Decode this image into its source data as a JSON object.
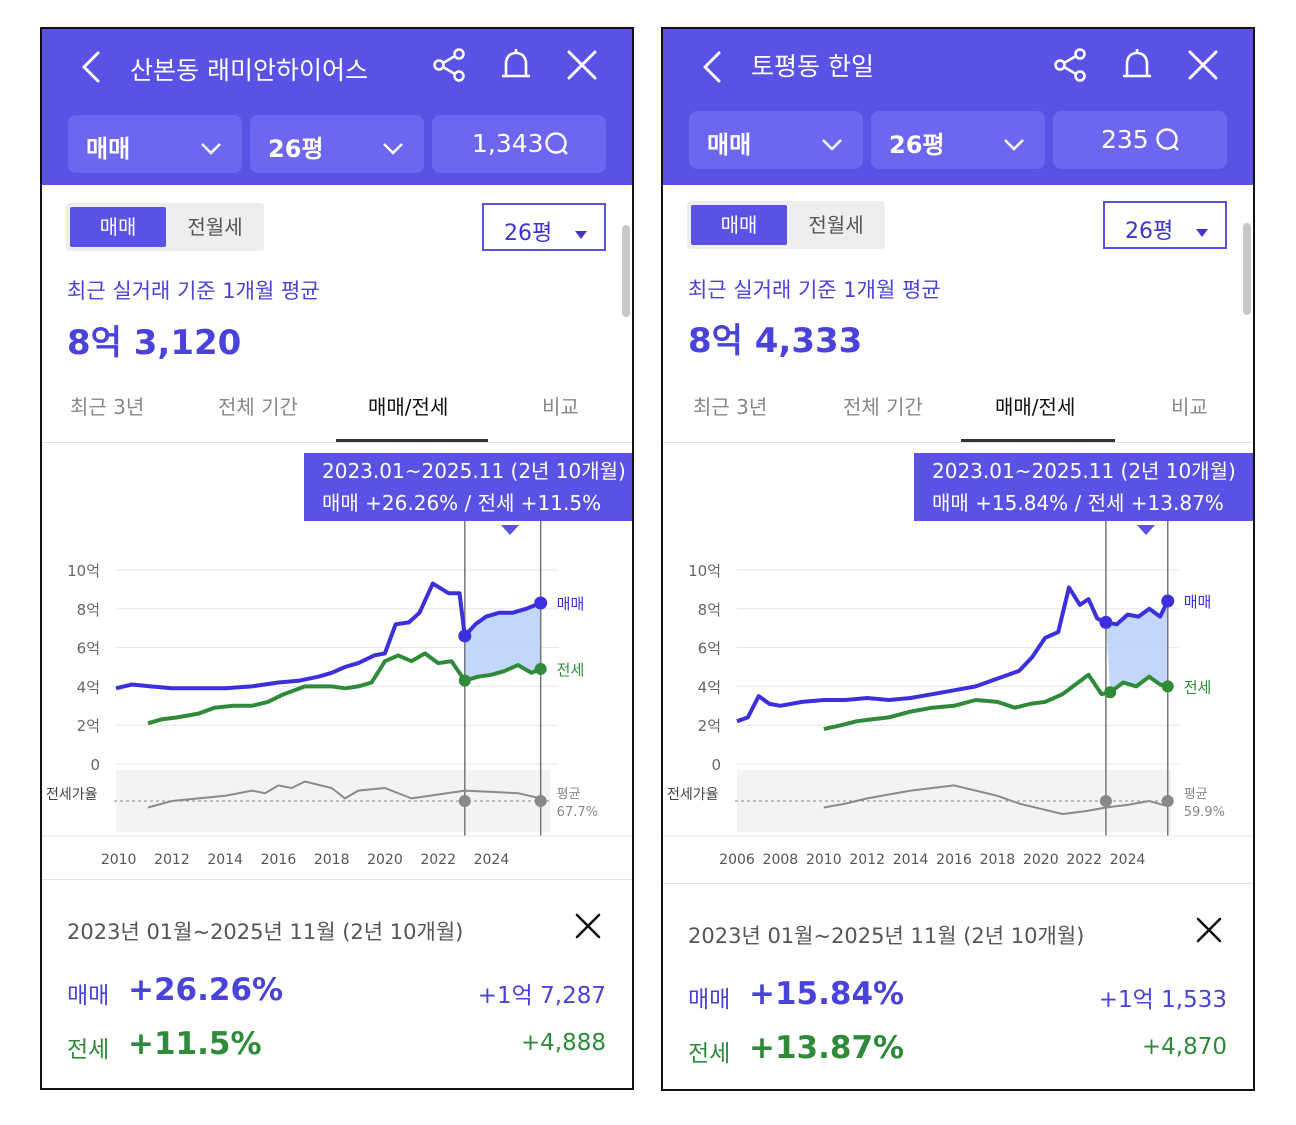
{
  "colors": {
    "header": "#5a52e4",
    "sale": "#3b30dc",
    "lease": "#2f8a3a",
    "ratio": "#8a8a8a",
    "highlight": "#bcd3fb"
  },
  "icons": [
    "back-arrow-icon",
    "share-icon",
    "bell-icon",
    "close-icon",
    "chevron-down-icon",
    "comment-icon",
    "dropdown-triangle-icon"
  ],
  "panels": [
    {
      "header": {
        "title": "산본동 래미안하이어스"
      },
      "selects": {
        "trade": "매매",
        "size": "26평",
        "comments": "1,343"
      },
      "segment": {
        "active": "매매",
        "inactive": "전월세"
      },
      "size_dropdown": "26평",
      "summary": {
        "label": "최근 실거래 기준 1개월 평균",
        "value": "8억 3,120"
      },
      "tabs": [
        "최근 3년",
        "전체 기간",
        "매매/전세",
        "비교"
      ],
      "active_tab": "매매/전세",
      "tooltip": {
        "line1": "2023.01~2025.11 (2년 10개월)",
        "line2": "매매 +26.26%  /  전세 +11.5%"
      },
      "bottom": {
        "period": "2023년 01월~2025년 11월 (2년 10개월)",
        "sale_label": "매매",
        "sale_pct": "+26.26%",
        "sale_amt": "+1억 7,287",
        "lease_label": "전세",
        "lease_pct": "+11.5%",
        "lease_amt": "+4,888"
      },
      "chart_data": {
        "type": "line",
        "y_ticks": [
          "10억",
          "8억",
          "6억",
          "4억",
          "2억",
          "0"
        ],
        "ylim": [
          0,
          10
        ],
        "y_unit": "억",
        "x_ticks": [
          "2010",
          "2012",
          "2014",
          "2016",
          "2018",
          "2020",
          "2022",
          "2024"
        ],
        "xlim": [
          2009.9,
          2026.2
        ],
        "ratio_label": "전세가율",
        "avg_label": "평균",
        "avg_value": "67.7%",
        "highlight_range": [
          2023.0,
          2025.85
        ],
        "series": [
          {
            "name": "매매",
            "x": [
              2009.9,
              2010.5,
              2011.2,
              2012.0,
              2013.0,
              2014.0,
              2015.0,
              2016.0,
              2016.8,
              2017.5,
              2018.0,
              2018.5,
              2019.0,
              2019.6,
              2020.0,
              2020.4,
              2020.9,
              2021.3,
              2021.8,
              2022.4,
              2022.8,
              2023.0,
              2023.4,
              2023.8,
              2024.3,
              2024.8,
              2025.3,
              2025.85
            ],
            "values": [
              3.9,
              4.1,
              4.0,
              3.9,
              3.9,
              3.9,
              4.0,
              4.2,
              4.3,
              4.5,
              4.7,
              5.0,
              5.2,
              5.6,
              5.7,
              7.2,
              7.3,
              7.8,
              9.3,
              8.8,
              8.8,
              6.6,
              7.2,
              7.6,
              7.8,
              7.8,
              8.0,
              8.3
            ]
          },
          {
            "name": "전세",
            "x": [
              2011.1,
              2011.6,
              2012.2,
              2013.0,
              2013.6,
              2014.3,
              2015.0,
              2015.6,
              2016.2,
              2017.0,
              2018.0,
              2018.5,
              2019.0,
              2019.5,
              2020.0,
              2020.5,
              2021.0,
              2021.5,
              2022.0,
              2022.5,
              2023.0,
              2023.5,
              2024.0,
              2024.5,
              2025.0,
              2025.5,
              2025.85
            ],
            "values": [
              2.1,
              2.3,
              2.4,
              2.6,
              2.9,
              3.0,
              3.0,
              3.2,
              3.6,
              4.0,
              4.0,
              3.9,
              4.0,
              4.2,
              5.3,
              5.6,
              5.3,
              5.7,
              5.2,
              5.3,
              4.3,
              4.5,
              4.6,
              4.8,
              5.1,
              4.7,
              4.9
            ]
          },
          {
            "name": "전세가율",
            "x": [
              2011.1,
              2012.0,
              2013.0,
              2014.0,
              2015.0,
              2015.5,
              2016.0,
              2016.5,
              2017.0,
              2018.0,
              2018.5,
              2019.0,
              2020.0,
              2021.0,
              2022.0,
              2023.0,
              2024.0,
              2025.0,
              2025.85
            ],
            "values": [
              55,
              60,
              62,
              64,
              68,
              66,
              72,
              70,
              75,
              70,
              62,
              68,
              70,
              62,
              65,
              68,
              67,
              66,
              62
            ]
          }
        ]
      }
    },
    {
      "header": {
        "title": "토평동 한일"
      },
      "selects": {
        "trade": "매매",
        "size": "26평",
        "comments": "235"
      },
      "segment": {
        "active": "매매",
        "inactive": "전월세"
      },
      "size_dropdown": "26평",
      "summary": {
        "label": "최근 실거래 기준 1개월 평균",
        "value": "8억 4,333"
      },
      "tabs": [
        "최근 3년",
        "전체 기간",
        "매매/전세",
        "비교"
      ],
      "active_tab": "매매/전세",
      "tooltip": {
        "line1": "2023.01~2025.11 (2년 10개월)",
        "line2": "매매 +15.84%  /  전세 +13.87%"
      },
      "bottom": {
        "period": "2023년 01월~2025년 11월 (2년 10개월)",
        "sale_label": "매매",
        "sale_pct": "+15.84%",
        "sale_amt": "+1억 1,533",
        "lease_label": "전세",
        "lease_pct": "+13.87%",
        "lease_amt": "+4,870"
      },
      "chart_data": {
        "type": "line",
        "y_ticks": [
          "10억",
          "8억",
          "6억",
          "4억",
          "2억",
          "0"
        ],
        "ylim": [
          0,
          10
        ],
        "y_unit": "억",
        "x_ticks": [
          "2006",
          "2008",
          "2010",
          "2012",
          "2014",
          "2016",
          "2018",
          "2020",
          "2022",
          "2024"
        ],
        "xlim": [
          2006.0,
          2026.0
        ],
        "ratio_label": "전세가율",
        "avg_label": "평균",
        "avg_value": "59.9%",
        "highlight_range": [
          2023.0,
          2025.85
        ],
        "series": [
          {
            "name": "매매",
            "x": [
              2006.0,
              2006.5,
              2007.0,
              2007.5,
              2008.0,
              2009.0,
              2010.0,
              2011.0,
              2012.0,
              2013.0,
              2014.0,
              2015.0,
              2016.0,
              2017.0,
              2018.0,
              2019.0,
              2019.6,
              2020.2,
              2020.8,
              2021.3,
              2021.8,
              2022.2,
              2022.6,
              2023.0,
              2023.5,
              2024.0,
              2024.5,
              2025.0,
              2025.5,
              2025.85
            ],
            "values": [
              2.2,
              2.4,
              3.5,
              3.1,
              3.0,
              3.2,
              3.3,
              3.3,
              3.4,
              3.3,
              3.4,
              3.6,
              3.8,
              4.0,
              4.4,
              4.8,
              5.5,
              6.5,
              6.8,
              9.1,
              8.2,
              8.5,
              7.5,
              7.3,
              7.2,
              7.7,
              7.6,
              8.0,
              7.6,
              8.4
            ]
          },
          {
            "name": "전세",
            "x": [
              2010.0,
              2010.8,
              2011.5,
              2012.2,
              2013.0,
              2014.0,
              2015.0,
              2016.0,
              2017.0,
              2018.0,
              2018.8,
              2019.5,
              2020.2,
              2021.0,
              2021.6,
              2022.2,
              2022.8,
              2023.2,
              2023.8,
              2024.4,
              2025.0,
              2025.5,
              2025.85
            ],
            "values": [
              1.8,
              2.0,
              2.2,
              2.3,
              2.4,
              2.7,
              2.9,
              3.0,
              3.3,
              3.2,
              2.9,
              3.1,
              3.2,
              3.6,
              4.1,
              4.6,
              3.6,
              3.7,
              4.2,
              4.0,
              4.5,
              4.1,
              4.0
            ]
          },
          {
            "name": "전세가율",
            "x": [
              2010.0,
              2011.0,
              2012.0,
              2013.0,
              2014.0,
              2015.0,
              2016.0,
              2017.0,
              2018.0,
              2019.0,
              2020.0,
              2021.0,
              2022.0,
              2023.0,
              2024.0,
              2025.0,
              2025.85
            ],
            "values": [
              55,
              58,
              62,
              65,
              68,
              70,
              72,
              68,
              64,
              58,
              54,
              50,
              52,
              55,
              57,
              60,
              56
            ]
          }
        ]
      }
    }
  ]
}
